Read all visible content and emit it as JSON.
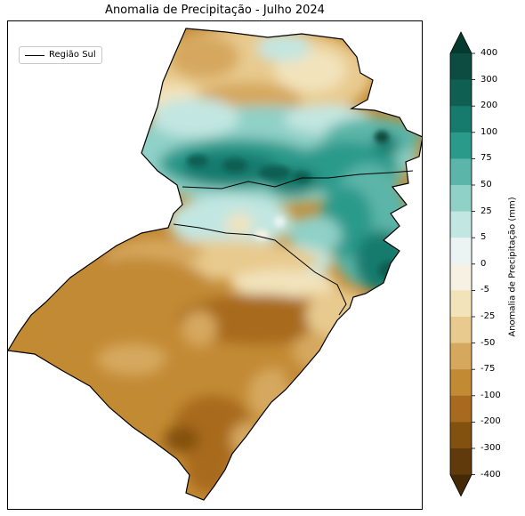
{
  "title": "Anomalia de Precipitação - Julho 2024",
  "legend": {
    "label": "Região Sul"
  },
  "colorbar": {
    "label": "Anomalia de Precipitação (mm)",
    "levels": [
      "400",
      "300",
      "200",
      "100",
      "75",
      "50",
      "25",
      "5",
      "0",
      "-5",
      "-25",
      "-50",
      "-75",
      "-100",
      "-200",
      "-300",
      "-400"
    ],
    "colors": [
      "#0d4d41",
      "#0f5f52",
      "#167a6d",
      "#2a9a8b",
      "#5bb5a9",
      "#8fd0c7",
      "#c2e6e1",
      "#ebf4f3",
      "#f6f1e2",
      "#f2e3bb",
      "#e8ca8e",
      "#d6a85e",
      "#c38a34",
      "#a86a1e",
      "#83510f",
      "#603a0a"
    ],
    "max_color": "#053a30",
    "min_color": "#452906"
  },
  "colors": {
    "frame": "#000000",
    "state_border": "#000000"
  }
}
